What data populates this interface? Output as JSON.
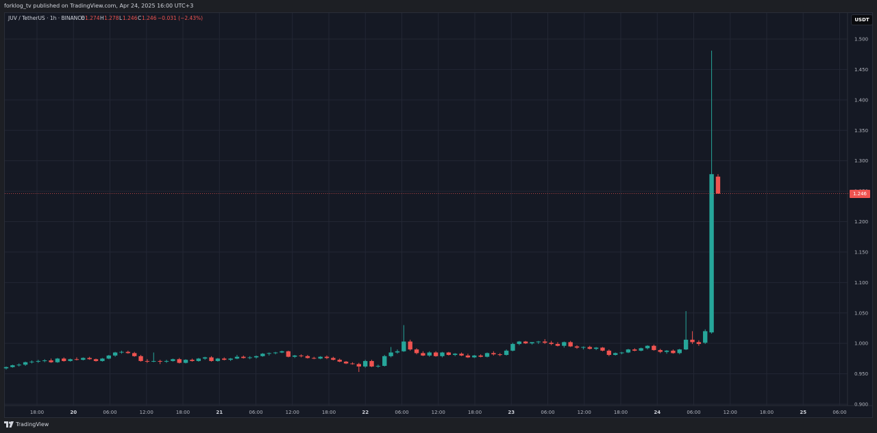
{
  "header": {
    "published_text": "forklog_tv published on TradingView.com, Apr 24, 2025 16:00 UTC+3"
  },
  "legend": {
    "symbol": "JUV / TetherUS · 1h · BINANCE",
    "o_label": "O",
    "o_value": "1.274",
    "h_label": "H",
    "h_value": "1.278",
    "l_label": "L",
    "l_value": "1.246",
    "c_label": "C",
    "c_value": "1.246",
    "change": "−0.031 (−2.43%)"
  },
  "price_axis": {
    "currency": "USDT",
    "current_price": "1.246"
  },
  "footer": {
    "brand": "TradingView"
  },
  "colors": {
    "up": "#26a69a",
    "down": "#ef5350",
    "background": "#151924",
    "grid": "#232734",
    "text": "#b2b5be"
  },
  "chart_data": {
    "type": "candlestick",
    "title": "JUV / TetherUS · 1h · BINANCE",
    "ylim": [
      0.9,
      1.5
    ],
    "y_ticks": [
      "0.900",
      "0.950",
      "1.000",
      "1.050",
      "1.100",
      "1.150",
      "1.200",
      "1.250",
      "1.300",
      "1.350",
      "1.400",
      "1.450",
      "1.500"
    ],
    "x_tick_labels": [
      "18:00",
      "20",
      "06:00",
      "12:00",
      "18:00",
      "21",
      "06:00",
      "12:00",
      "18:00",
      "22",
      "06:00",
      "12:00",
      "18:00",
      "23",
      "06:00",
      "12:00",
      "18:00",
      "24",
      "06:00",
      "12:00",
      "18:00",
      "25",
      "06:00"
    ],
    "current_price": 1.246,
    "grid": true,
    "series": [
      {
        "candles_ohlc": [
          [
            0.959,
            0.962,
            0.957,
            0.961
          ],
          [
            0.961,
            0.965,
            0.96,
            0.964
          ],
          [
            0.964,
            0.967,
            0.962,
            0.965
          ],
          [
            0.965,
            0.97,
            0.963,
            0.969
          ],
          [
            0.969,
            0.972,
            0.967,
            0.97
          ],
          [
            0.97,
            0.973,
            0.968,
            0.971
          ],
          [
            0.971,
            0.974,
            0.969,
            0.972
          ],
          [
            0.972,
            0.975,
            0.968,
            0.969
          ],
          [
            0.969,
            0.976,
            0.968,
            0.975
          ],
          [
            0.975,
            0.977,
            0.97,
            0.971
          ],
          [
            0.971,
            0.975,
            0.97,
            0.974
          ],
          [
            0.974,
            0.977,
            0.972,
            0.973
          ],
          [
            0.973,
            0.977,
            0.972,
            0.976
          ],
          [
            0.976,
            0.978,
            0.973,
            0.974
          ],
          [
            0.974,
            0.975,
            0.97,
            0.971
          ],
          [
            0.971,
            0.976,
            0.97,
            0.975
          ],
          [
            0.975,
            0.981,
            0.974,
            0.98
          ],
          [
            0.98,
            0.986,
            0.978,
            0.985
          ],
          [
            0.985,
            0.988,
            0.983,
            0.986
          ],
          [
            0.986,
            0.988,
            0.983,
            0.984
          ],
          [
            0.984,
            0.986,
            0.978,
            0.979
          ],
          [
            0.979,
            0.981,
            0.97,
            0.971
          ],
          [
            0.971,
            0.974,
            0.968,
            0.97
          ],
          [
            0.97,
            0.985,
            0.969,
            0.971
          ],
          [
            0.971,
            0.973,
            0.966,
            0.97
          ],
          [
            0.97,
            0.973,
            0.968,
            0.971
          ],
          [
            0.971,
            0.975,
            0.97,
            0.974
          ],
          [
            0.974,
            0.976,
            0.967,
            0.968
          ],
          [
            0.968,
            0.974,
            0.967,
            0.973
          ],
          [
            0.973,
            0.975,
            0.97,
            0.971
          ],
          [
            0.971,
            0.976,
            0.97,
            0.975
          ],
          [
            0.975,
            0.978,
            0.973,
            0.977
          ],
          [
            0.977,
            0.979,
            0.97,
            0.971
          ],
          [
            0.971,
            0.976,
            0.97,
            0.975
          ],
          [
            0.975,
            0.977,
            0.972,
            0.973
          ],
          [
            0.973,
            0.976,
            0.971,
            0.975
          ],
          [
            0.975,
            0.981,
            0.974,
            0.978
          ],
          [
            0.978,
            0.98,
            0.975,
            0.976
          ],
          [
            0.976,
            0.979,
            0.974,
            0.977
          ],
          [
            0.977,
            0.98,
            0.975,
            0.979
          ],
          [
            0.979,
            0.984,
            0.978,
            0.983
          ],
          [
            0.983,
            0.985,
            0.98,
            0.984
          ],
          [
            0.984,
            0.986,
            0.982,
            0.985
          ],
          [
            0.985,
            0.988,
            0.984,
            0.987
          ],
          [
            0.987,
            0.988,
            0.977,
            0.978
          ],
          [
            0.978,
            0.981,
            0.976,
            0.98
          ],
          [
            0.98,
            0.982,
            0.977,
            0.979
          ],
          [
            0.979,
            0.981,
            0.975,
            0.976
          ],
          [
            0.976,
            0.978,
            0.974,
            0.975
          ],
          [
            0.975,
            0.979,
            0.974,
            0.978
          ],
          [
            0.978,
            0.98,
            0.974,
            0.976
          ],
          [
            0.976,
            0.978,
            0.972,
            0.973
          ],
          [
            0.973,
            0.975,
            0.969,
            0.97
          ],
          [
            0.97,
            0.971,
            0.966,
            0.967
          ],
          [
            0.967,
            0.969,
            0.965,
            0.966
          ],
          [
            0.966,
            0.968,
            0.953,
            0.962
          ],
          [
            0.962,
            0.973,
            0.96,
            0.971
          ],
          [
            0.971,
            0.973,
            0.961,
            0.962
          ],
          [
            0.962,
            0.965,
            0.96,
            0.963
          ],
          [
            0.963,
            0.981,
            0.962,
            0.979
          ],
          [
            0.979,
            0.994,
            0.977,
            0.985
          ],
          [
            0.985,
            0.99,
            0.983,
            0.987
          ],
          [
            0.987,
            1.03,
            0.986,
            1.003
          ],
          [
            1.003,
            1.006,
            0.988,
            0.99
          ],
          [
            0.99,
            0.992,
            0.982,
            0.984
          ],
          [
            0.984,
            0.987,
            0.979,
            0.98
          ],
          [
            0.98,
            0.987,
            0.978,
            0.985
          ],
          [
            0.985,
            0.987,
            0.978,
            0.979
          ],
          [
            0.979,
            0.986,
            0.977,
            0.985
          ],
          [
            0.985,
            0.986,
            0.98,
            0.981
          ],
          [
            0.981,
            0.984,
            0.979,
            0.983
          ],
          [
            0.983,
            0.985,
            0.979,
            0.98
          ],
          [
            0.98,
            0.983,
            0.976,
            0.977
          ],
          [
            0.977,
            0.981,
            0.976,
            0.98
          ],
          [
            0.98,
            0.982,
            0.977,
            0.978
          ],
          [
            0.978,
            0.985,
            0.977,
            0.984
          ],
          [
            0.984,
            0.987,
            0.98,
            0.982
          ],
          [
            0.982,
            0.984,
            0.979,
            0.981
          ],
          [
            0.981,
            0.99,
            0.98,
            0.988
          ],
          [
            0.988,
            1.001,
            0.987,
            0.999
          ],
          [
            0.999,
            1.004,
            0.997,
            1.003
          ],
          [
            1.003,
            1.004,
            0.999,
            1.0
          ],
          [
            1.0,
            1.002,
            0.998,
            1.002
          ],
          [
            1.002,
            1.004,
            0.999,
            1.003
          ],
          [
            1.003,
            1.007,
            0.999,
            1.001
          ],
          [
            1.001,
            1.004,
            0.997,
            0.999
          ],
          [
            0.999,
            1.002,
            0.995,
            0.996
          ],
          [
            0.996,
            1.003,
            0.993,
            1.002
          ],
          [
            1.002,
            1.004,
            0.994,
            0.995
          ],
          [
            0.995,
            0.997,
            0.991,
            0.993
          ],
          [
            0.993,
            0.995,
            0.99,
            0.994
          ],
          [
            0.994,
            0.996,
            0.99,
            0.991
          ],
          [
            0.991,
            0.994,
            0.989,
            0.993
          ],
          [
            0.993,
            0.994,
            0.987,
            0.988
          ],
          [
            0.988,
            0.99,
            0.979,
            0.981
          ],
          [
            0.981,
            0.985,
            0.98,
            0.984
          ],
          [
            0.984,
            0.986,
            0.982,
            0.985
          ],
          [
            0.985,
            0.991,
            0.984,
            0.99
          ],
          [
            0.99,
            0.992,
            0.987,
            0.988
          ],
          [
            0.988,
            0.993,
            0.987,
            0.992
          ],
          [
            0.992,
            0.997,
            0.99,
            0.996
          ],
          [
            0.996,
            0.998,
            0.988,
            0.989
          ],
          [
            0.989,
            0.991,
            0.984,
            0.986
          ],
          [
            0.986,
            0.989,
            0.983,
            0.988
          ],
          [
            0.988,
            0.99,
            0.983,
            0.984
          ],
          [
            0.984,
            0.991,
            0.982,
            0.99
          ],
          [
            0.99,
            1.053,
            0.989,
            1.006
          ],
          [
            1.006,
            1.02,
            0.999,
            1.002
          ],
          [
            1.002,
            1.005,
            0.996,
            0.999
          ],
          [
            1.001,
            1.023,
            0.999,
            1.02
          ],
          [
            1.018,
            1.481,
            1.016,
            1.278
          ],
          [
            1.274,
            1.278,
            1.246,
            1.246
          ]
        ]
      }
    ]
  }
}
